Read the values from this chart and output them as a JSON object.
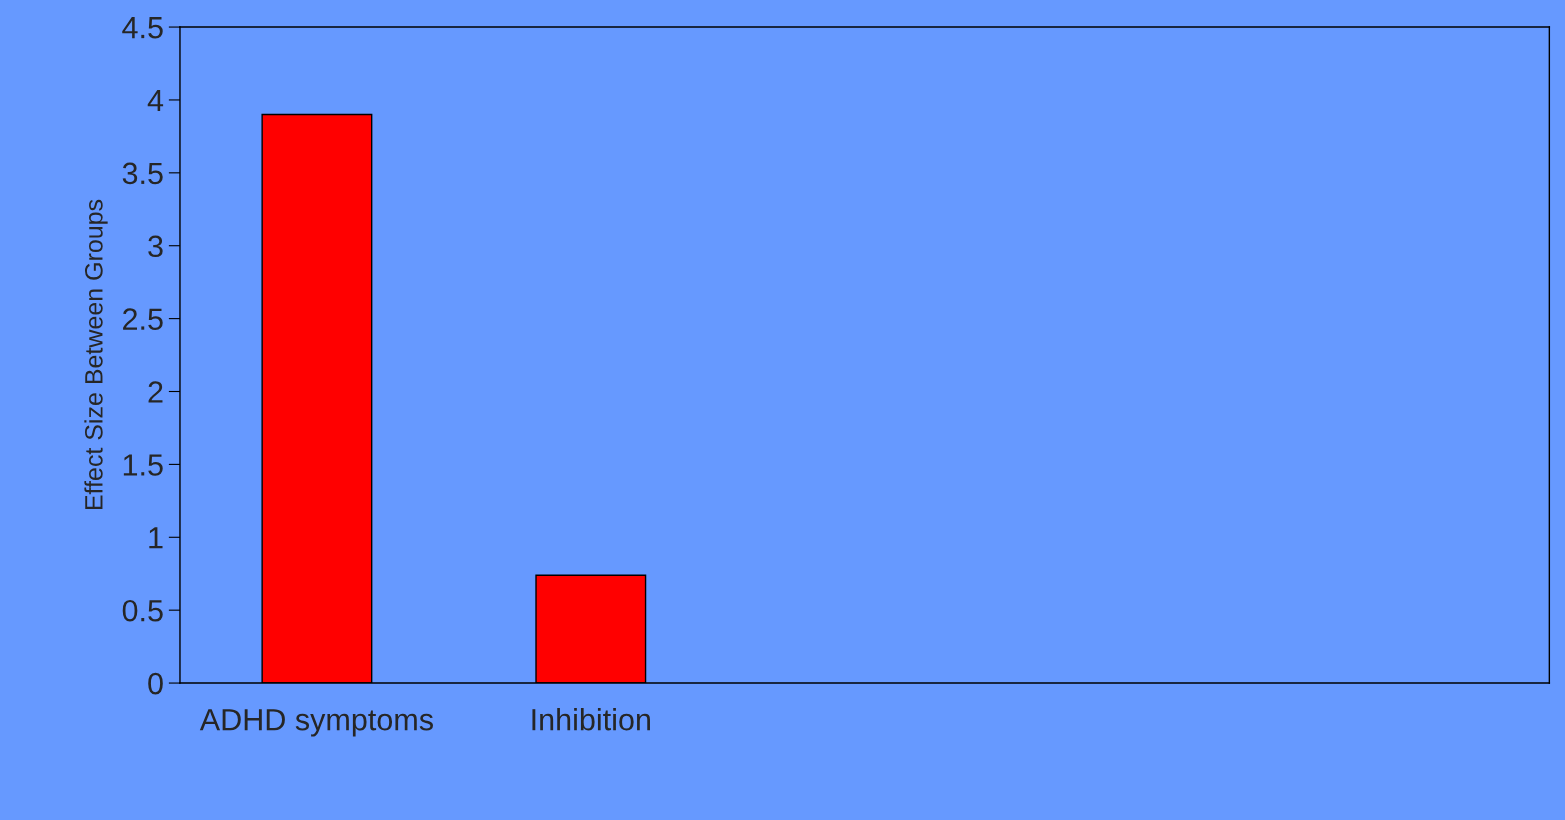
{
  "chart_data": {
    "type": "bar",
    "ylabel": "Effect Size Between Groups",
    "categories": [
      "ADHD symptoms",
      "Inhibition",
      null,
      null,
      null
    ],
    "values": [
      3.9,
      0.74,
      null,
      null,
      null
    ],
    "color": "#ff0000",
    "ylim": [
      0,
      4.5
    ],
    "yticks": [
      0,
      0.5,
      1,
      1.5,
      2,
      2.5,
      3,
      3.5,
      4,
      4.5
    ],
    "grid": false
  }
}
